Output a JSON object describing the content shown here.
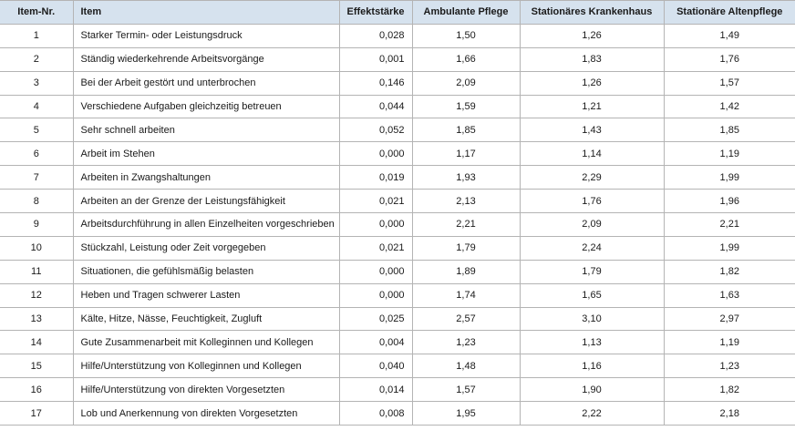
{
  "table": {
    "header": [
      "Item-Nr.",
      "Item",
      "Effektstärke",
      "Ambulante Pflege",
      "Stationäres Krankenhaus",
      "Stationäre Altenpflege"
    ],
    "rows": [
      [
        "1",
        "Starker Termin- oder Leistungsdruck",
        "0,028",
        "1,50",
        "1,26",
        "1,49"
      ],
      [
        "2",
        "Ständig wiederkehrende Arbeitsvorgänge",
        "0,001",
        "1,66",
        "1,83",
        "1,76"
      ],
      [
        "3",
        "Bei der Arbeit gestört und unterbrochen",
        "0,146",
        "2,09",
        "1,26",
        "1,57"
      ],
      [
        "4",
        "Verschiedene Aufgaben gleichzeitig betreuen",
        "0,044",
        "1,59",
        "1,21",
        "1,42"
      ],
      [
        "5",
        "Sehr schnell arbeiten",
        "0,052",
        "1,85",
        "1,43",
        "1,85"
      ],
      [
        "6",
        "Arbeit im Stehen",
        "0,000",
        "1,17",
        "1,14",
        "1,19"
      ],
      [
        "7",
        "Arbeiten in Zwangshaltungen",
        "0,019",
        "1,93",
        "2,29",
        "1,99"
      ],
      [
        "8",
        "Arbeiten an der Grenze der Leistungsfähigkeit",
        "0,021",
        "2,13",
        "1,76",
        "1,96"
      ],
      [
        "9",
        "Arbeitsdurchführung in allen Einzelheiten vorgeschrieben",
        "0,000",
        "2,21",
        "2,09",
        "2,21"
      ],
      [
        "10",
        "Stückzahl, Leistung oder Zeit vorgegeben",
        "0,021",
        "1,79",
        "2,24",
        "1,99"
      ],
      [
        "11",
        "Situationen, die gefühlsmäßig belasten",
        "0,000",
        "1,89",
        "1,79",
        "1,82"
      ],
      [
        "12",
        "Heben und Tragen schwerer Lasten",
        "0,000",
        "1,74",
        "1,65",
        "1,63"
      ],
      [
        "13",
        "Kälte, Hitze, Nässe, Feuchtigkeit, Zugluft",
        "0,025",
        "2,57",
        "3,10",
        "2,97"
      ],
      [
        "14",
        "Gute Zusammenarbeit mit Kolleginnen und Kollegen",
        "0,004",
        "1,23",
        "1,13",
        "1,19"
      ],
      [
        "15",
        "Hilfe/Unterstützung von  Kolleginnen und Kollegen",
        "0,040",
        "1,48",
        "1,16",
        "1,23"
      ],
      [
        "16",
        "Hilfe/Unterstützung von direkten Vorgesetzten",
        "0,014",
        "1,57",
        "1,90",
        "1,82"
      ],
      [
        "17",
        "Lob und Anerkennung von direkten Vorgesetzten",
        "0,008",
        "1,95",
        "2,22",
        "2,18"
      ]
    ]
  }
}
